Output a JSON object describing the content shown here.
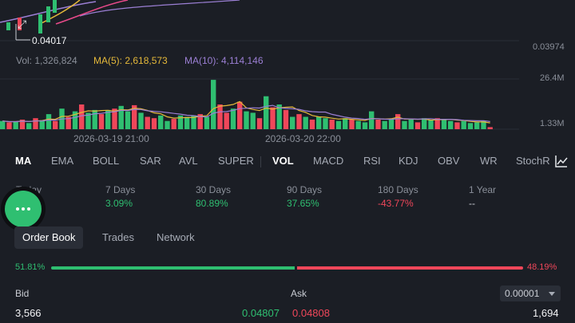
{
  "price_chart": {
    "current_price_label": "0.04017",
    "right_price_label": "0.03974",
    "expand_icon": "expand-arrows-icon"
  },
  "volume": {
    "vol_label": "Vol: 1,326,824",
    "ma5_label": "MA(5): 2,618,573",
    "ma10_label": "MA(10): 4,114,146",
    "y_top": "26.4M",
    "y_bottom": "1.33M",
    "date_left": "2026-03-19 21:00",
    "date_right": "2026-03-20 22:00",
    "bars": [
      {
        "v": 12,
        "c": "g"
      },
      {
        "v": 10,
        "c": "r"
      },
      {
        "v": 11,
        "c": "g"
      },
      {
        "v": 14,
        "c": "r"
      },
      {
        "v": 9,
        "c": "g"
      },
      {
        "v": 16,
        "c": "r"
      },
      {
        "v": 13,
        "c": "g"
      },
      {
        "v": 22,
        "c": "g"
      },
      {
        "v": 12,
        "c": "r"
      },
      {
        "v": 30,
        "c": "g"
      },
      {
        "v": 18,
        "c": "r"
      },
      {
        "v": 26,
        "c": "g"
      },
      {
        "v": 36,
        "c": "r"
      },
      {
        "v": 24,
        "c": "g"
      },
      {
        "v": 28,
        "c": "g"
      },
      {
        "v": 22,
        "c": "r"
      },
      {
        "v": 28,
        "c": "g"
      },
      {
        "v": 30,
        "c": "r"
      },
      {
        "v": 34,
        "c": "g"
      },
      {
        "v": 26,
        "c": "g"
      },
      {
        "v": 35,
        "c": "r"
      },
      {
        "v": 24,
        "c": "g"
      },
      {
        "v": 18,
        "c": "r"
      },
      {
        "v": 16,
        "c": "r"
      },
      {
        "v": 20,
        "c": "g"
      },
      {
        "v": 12,
        "c": "g"
      },
      {
        "v": 15,
        "c": "r"
      },
      {
        "v": 20,
        "c": "g"
      },
      {
        "v": 18,
        "c": "g"
      },
      {
        "v": 20,
        "c": "g"
      },
      {
        "v": 22,
        "c": "r"
      },
      {
        "v": 18,
        "c": "g"
      },
      {
        "v": 72,
        "c": "g"
      },
      {
        "v": 36,
        "c": "r"
      },
      {
        "v": 24,
        "c": "r"
      },
      {
        "v": 30,
        "c": "g"
      },
      {
        "v": 40,
        "c": "r"
      },
      {
        "v": 26,
        "c": "g"
      },
      {
        "v": 24,
        "c": "g"
      },
      {
        "v": 16,
        "c": "r"
      },
      {
        "v": 48,
        "c": "g"
      },
      {
        "v": 32,
        "c": "r"
      },
      {
        "v": 36,
        "c": "g"
      },
      {
        "v": 28,
        "c": "r"
      },
      {
        "v": 18,
        "c": "g"
      },
      {
        "v": 22,
        "c": "r"
      },
      {
        "v": 18,
        "c": "g"
      },
      {
        "v": 14,
        "c": "r"
      },
      {
        "v": 18,
        "c": "g"
      },
      {
        "v": 16,
        "c": "g"
      },
      {
        "v": 14,
        "c": "r"
      },
      {
        "v": 12,
        "c": "g"
      },
      {
        "v": 16,
        "c": "g"
      },
      {
        "v": 14,
        "c": "r"
      },
      {
        "v": 12,
        "c": "g"
      },
      {
        "v": 10,
        "c": "g"
      },
      {
        "v": 26,
        "c": "g"
      },
      {
        "v": 14,
        "c": "r"
      },
      {
        "v": 12,
        "c": "g"
      },
      {
        "v": 14,
        "c": "g"
      },
      {
        "v": 22,
        "c": "r"
      },
      {
        "v": 12,
        "c": "g"
      },
      {
        "v": 14,
        "c": "g"
      },
      {
        "v": 10,
        "c": "r"
      },
      {
        "v": 16,
        "c": "g"
      },
      {
        "v": 14,
        "c": "g"
      },
      {
        "v": 16,
        "c": "r"
      },
      {
        "v": 14,
        "c": "g"
      },
      {
        "v": 12,
        "c": "g"
      },
      {
        "v": 10,
        "c": "r"
      },
      {
        "v": 12,
        "c": "g"
      },
      {
        "v": 9,
        "c": "g"
      },
      {
        "v": 10,
        "c": "g"
      },
      {
        "v": 12,
        "c": "g"
      },
      {
        "v": 3,
        "c": "r"
      }
    ]
  },
  "indicators": {
    "tabs": [
      "MA",
      "EMA",
      "BOLL",
      "SAR",
      "AVL",
      "SUPER",
      "VOL",
      "MACD",
      "RSI",
      "KDJ",
      "OBV",
      "WR",
      "StochR"
    ],
    "active_main": "MA",
    "active_sub": "VOL",
    "settings_icon": "line-chart-settings-icon"
  },
  "performance": [
    {
      "label": "Today",
      "value": ""
    },
    {
      "label": "7 Days",
      "value": "3.09%"
    },
    {
      "label": "30 Days",
      "value": "80.89%"
    },
    {
      "label": "90 Days",
      "value": "37.65%"
    },
    {
      "label": "180 Days",
      "value": "-43.77%"
    },
    {
      "label": "1 Year",
      "value": "--"
    }
  ],
  "book_tabs": [
    "Order Book",
    "Trades",
    "Network"
  ],
  "order_book": {
    "bid_ratio": "51.81%",
    "ask_ratio": "48.19%",
    "bid_header": "Bid",
    "ask_header": "Ask",
    "precision": "0.00001",
    "rows": [
      {
        "bid_qty": "3,566",
        "bid_price": "0.04807",
        "ask_price": "0.04808",
        "ask_qty": "1,694"
      }
    ]
  },
  "colors": {
    "green": "#2fbf71",
    "red": "#f0475a",
    "ma5": "#e5b93a",
    "ma10": "#9b7fd4"
  }
}
